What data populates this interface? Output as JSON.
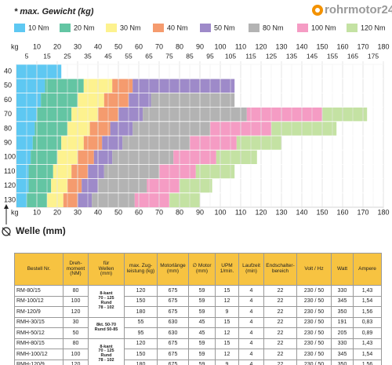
{
  "title": "* max. Gewicht (kg)",
  "logo": "rohrmotor24",
  "chart_data": {
    "type": "range-bar",
    "x_label": "kg",
    "y_label": "Welle (mm)",
    "categories": [
      40,
      50,
      60,
      70,
      80,
      90,
      100,
      110,
      120,
      130
    ],
    "xlim": [
      0,
      180
    ],
    "xticks": [
      10,
      20,
      30,
      40,
      50,
      60,
      70,
      80,
      90,
      100,
      110,
      120,
      130,
      140,
      150,
      160,
      170,
      180
    ],
    "xticks_minor": [
      5,
      15,
      25,
      35,
      45,
      55,
      65,
      75,
      85,
      95,
      105,
      115,
      125,
      135,
      145,
      155,
      165,
      175
    ],
    "series": [
      {
        "name": "10 Nm",
        "color": "#5ec8f2",
        "values": [
          22,
          14,
          12,
          10,
          9,
          8,
          7,
          6,
          6,
          5
        ]
      },
      {
        "name": "20 Nm",
        "color": "#63c5a3",
        "values": [
          null,
          33,
          30,
          27,
          25,
          22,
          20,
          18,
          17,
          15
        ]
      },
      {
        "name": "30 Nm",
        "color": "#fdf28f",
        "values": [
          null,
          47,
          43,
          40,
          36,
          33,
          30,
          27,
          25,
          23
        ]
      },
      {
        "name": "40 Nm",
        "color": "#f59b6e",
        "values": [
          null,
          57,
          55,
          50,
          46,
          42,
          38,
          35,
          32,
          30
        ]
      },
      {
        "name": "50 Nm",
        "color": "#9e8ac9",
        "values": [
          null,
          107,
          66,
          62,
          57,
          52,
          47,
          43,
          40,
          37
        ]
      },
      {
        "name": "80 Nm",
        "color": "#b3b3b3",
        "values": [
          null,
          null,
          107,
          113,
          95,
          85,
          77,
          70,
          64,
          58
        ]
      },
      {
        "name": "100 Nm",
        "color": "#f59cc4",
        "values": [
          null,
          null,
          null,
          150,
          125,
          108,
          98,
          88,
          80,
          75
        ]
      },
      {
        "name": "120 Nm",
        "color": "#c4e2a3",
        "values": [
          null,
          null,
          null,
          172,
          157,
          130,
          118,
          107,
          96,
          90
        ]
      }
    ]
  },
  "table": {
    "header": [
      [
        "Bestell Nr."
      ],
      [
        "Dreh-",
        "moment",
        "(NM)"
      ],
      [
        "für",
        "Wellen",
        "(mm)"
      ],
      [
        "max. Zug-",
        "leistung (kg)"
      ],
      [
        "Motorlänge",
        "(mm)"
      ],
      [
        "∅ Motor",
        "(mm)"
      ],
      [
        "UPM",
        "1/min."
      ],
      [
        "Laufzeit",
        "(min)"
      ],
      [
        "Endschalter-",
        "bereich"
      ],
      [
        "Volt / Hz"
      ],
      [
        "Watt"
      ],
      [
        "Ampere"
      ]
    ],
    "rows": [
      [
        "RM-80/15",
        80,
        [
          "8-kant",
          "70 - 125",
          "Rund",
          "78 - 102"
        ],
        120,
        675,
        59,
        15,
        4,
        22,
        "230 / 50",
        330,
        "1,43"
      ],
      [
        "RM-100/12",
        100,
        null,
        150,
        675,
        59,
        12,
        4,
        22,
        "230 / 50",
        345,
        "1,54"
      ],
      [
        "RM-120/9",
        120,
        null,
        180,
        675,
        59,
        9,
        4,
        22,
        "230 / 50",
        350,
        "1,56"
      ],
      [
        "RMH-30/15",
        30,
        [
          "8kt. 50-70",
          "Rund 50-85"
        ],
        55,
        630,
        45,
        15,
        4,
        22,
        "230 / 50",
        191,
        "0,83"
      ],
      [
        "RMH-50/12",
        50,
        null,
        95,
        630,
        45,
        12,
        4,
        22,
        "230 / 50",
        205,
        "0,89"
      ],
      [
        "RMH-80/15",
        80,
        [
          "8-kant",
          "70 - 125",
          "Rund",
          "78 - 102"
        ],
        120,
        675,
        59,
        15,
        4,
        22,
        "230 / 50",
        330,
        "1,43"
      ],
      [
        "RMH-100/12",
        100,
        null,
        150,
        675,
        59,
        12,
        4,
        22,
        "230 / 50",
        345,
        "1,54"
      ],
      [
        "RMH-120/9",
        120,
        null,
        180,
        675,
        59,
        9,
        4,
        22,
        "230 / 50",
        350,
        "1,56"
      ]
    ]
  }
}
